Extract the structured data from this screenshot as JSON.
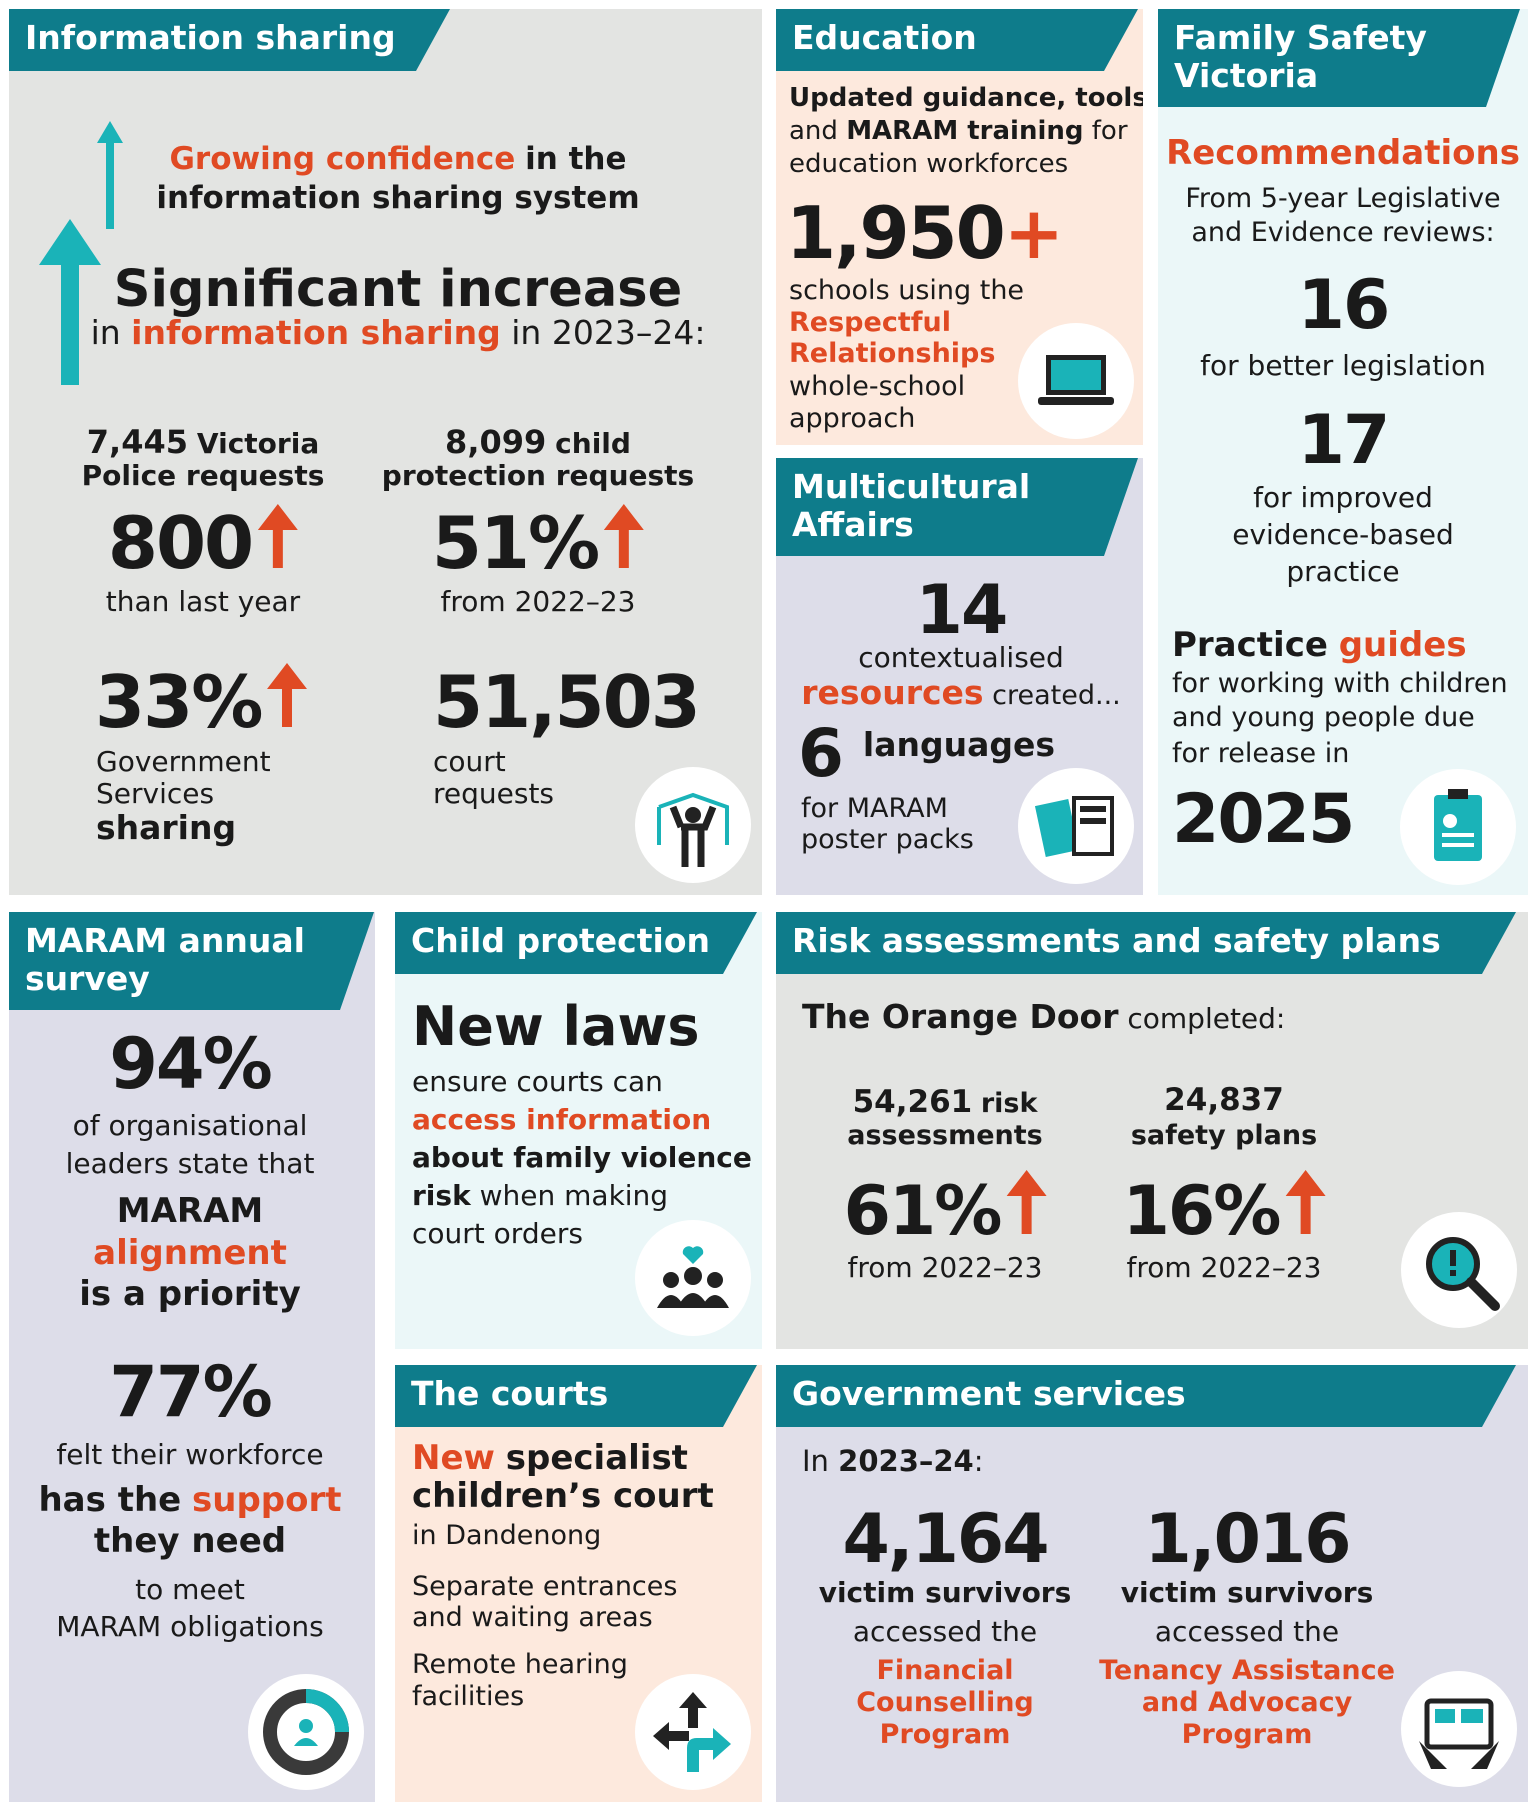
{
  "information_sharing": {
    "title": "Information sharing",
    "confidence": {
      "highlight": "Growing confidence",
      "rest": "in the",
      "line2": "information sharing system"
    },
    "increase": {
      "headline": "Significant increase",
      "pre": "in",
      "highlight": "information sharing",
      "post": "in 2023–24:"
    },
    "stats": [
      {
        "number": "7,445",
        "label": "Victoria",
        "label2": "Police requests",
        "change": "800",
        "change_note": "than last year"
      },
      {
        "number": "8,099",
        "label": "child",
        "label2": "protection requests",
        "change": "51%",
        "change_note": "from 2022–23"
      },
      {
        "number": "33%",
        "lines": [
          "Government",
          "Services",
          "sharing"
        ]
      },
      {
        "number": "51,503",
        "lines": [
          "court",
          "requests"
        ]
      }
    ]
  },
  "education": {
    "title": "Education",
    "intro": {
      "line1": "Updated guidance, tools",
      "and": "and",
      "training": "MARAM training",
      "for": "for",
      "line3": "education workforces"
    },
    "number": "1,950",
    "plus": "+",
    "text": {
      "line1": "schools using the",
      "highlight1": "Respectful",
      "highlight2": "Relationships",
      "line4": "whole-school",
      "line5": "approach"
    }
  },
  "family_safety_victoria": {
    "title": "Family Safety Victoria",
    "recommendations": "Recommendations",
    "source": [
      "From 5-year Legislative",
      "and Evidence reviews:"
    ],
    "items": [
      {
        "number": "16",
        "lines": [
          "for better legislation"
        ]
      },
      {
        "number": "17",
        "lines": [
          "for improved",
          "evidence-based",
          "practice"
        ]
      }
    ],
    "guides": {
      "lead": "Practice",
      "highlight": "guides",
      "lines": [
        "for working with children",
        "and young people due",
        "for release in"
      ],
      "year": "2025"
    }
  },
  "multicultural_affairs": {
    "title": "Multicultural Affairs",
    "number": "14",
    "line1": "contextualised",
    "highlight": "resources",
    "rest": "created...",
    "languages_number": "6",
    "languages": "languages",
    "lines": [
      "for MARAM",
      "poster packs"
    ]
  },
  "maram_survey": {
    "title": "MARAM annual survey",
    "stat1": {
      "number": "94%",
      "lines": [
        "of organisational",
        "leaders state that"
      ],
      "bold1": "MARAM",
      "highlight": "alignment",
      "bold2": "is a priority"
    },
    "stat2": {
      "number": "77%",
      "line1": "felt their workforce",
      "bold1": "has the",
      "highlight": "support",
      "bold2": "they need",
      "lines": [
        "to meet",
        "MARAM obligations"
      ]
    }
  },
  "child_protection": {
    "title": "Child protection",
    "headline": "New laws",
    "line1": "ensure courts can",
    "highlight": "access information",
    "bold1": "about family violence",
    "bold2": "risk",
    "rest": "when making",
    "line5": "court orders"
  },
  "courts": {
    "title": "The courts",
    "highlight": "New",
    "bold1": "specialist",
    "bold2": "children’s court",
    "line3": "in Dandenong",
    "lines": [
      "Separate entrances",
      "and waiting areas",
      "Remote hearing",
      "facilities"
    ]
  },
  "risk_assessments": {
    "title": "Risk assessments and safety plans",
    "org": "The Orange Door",
    "rest": "completed:",
    "stats": [
      {
        "number": "54,261",
        "label": "risk",
        "label2": "assessments",
        "change": "61%",
        "note": "from 2022–23"
      },
      {
        "number": "24,837",
        "label2": "safety plans",
        "change": "16%",
        "note": "from 2022–23"
      }
    ]
  },
  "government_services": {
    "title": "Government services",
    "pre": "In",
    "year": "2023–24",
    "colon": ":",
    "stats": [
      {
        "number": "4,164",
        "label": "victim survivors",
        "accessed": "accessed the",
        "program": [
          "Financial",
          "Counselling",
          "Program"
        ]
      },
      {
        "number": "1,016",
        "label": "victim survivors",
        "accessed": "accessed the",
        "program": [
          "Tenancy Assistance",
          "and Advocacy",
          "Program"
        ]
      }
    ]
  }
}
